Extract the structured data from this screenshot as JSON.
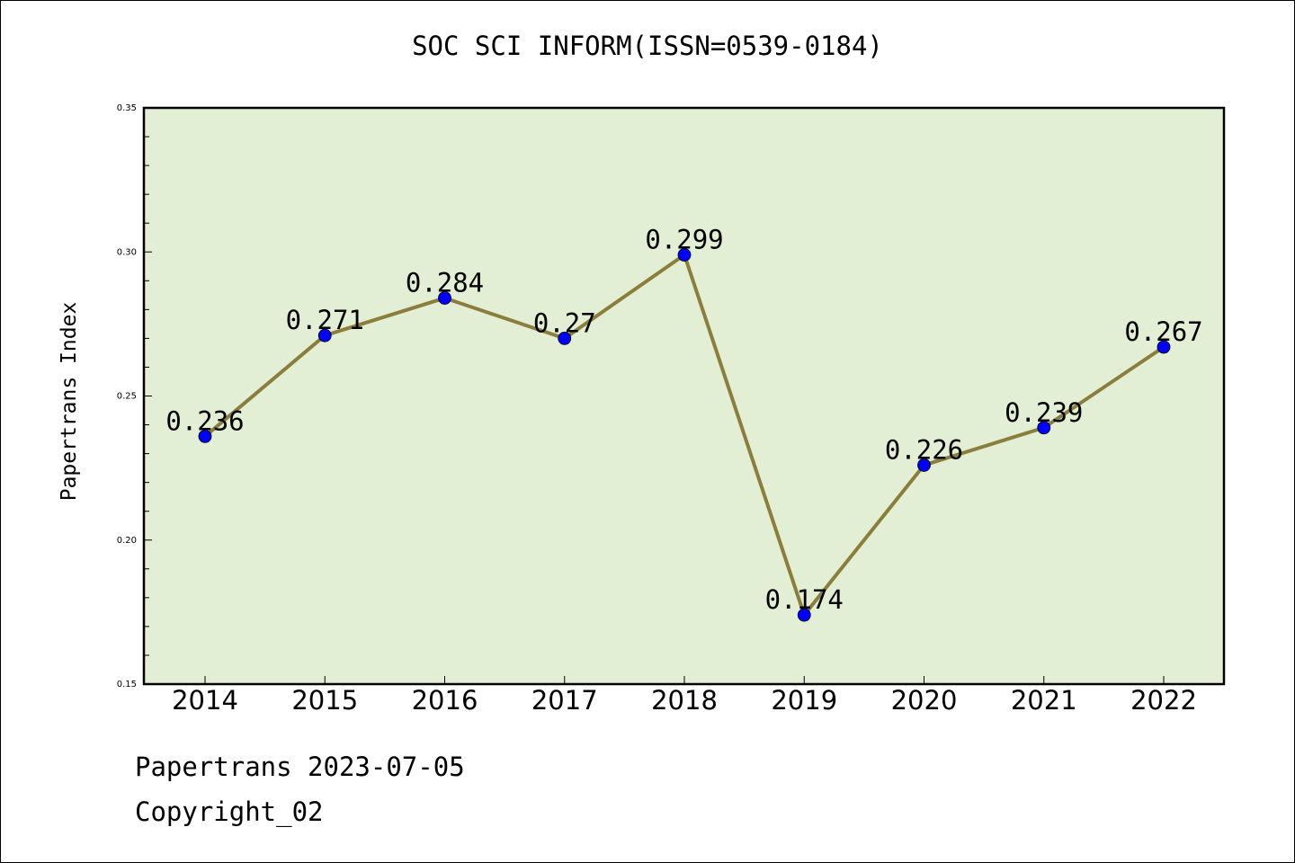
{
  "colors": {
    "background": "#ffffff",
    "plot_background": "#e2efd5",
    "line": "#8b7d3a",
    "marker": "#0000ff"
  },
  "chart_data": {
    "type": "line",
    "title": "SOC SCI INFORM(ISSN=0539-0184)",
    "xlabel": "",
    "ylabel": "Papertrans Index",
    "categories": [
      "2014",
      "2015",
      "2016",
      "2017",
      "2018",
      "2019",
      "2020",
      "2021",
      "2022"
    ],
    "values": [
      0.236,
      0.271,
      0.284,
      0.27,
      0.299,
      0.174,
      0.226,
      0.239,
      0.267
    ],
    "data_labels": [
      "0.236",
      "0.271",
      "0.284",
      "0.27",
      "0.299",
      "0.174",
      "0.226",
      "0.239",
      "0.267"
    ],
    "ylim": [
      0.15,
      0.35
    ],
    "yticks": [
      "0.15",
      "0.20",
      "0.25",
      "0.30",
      "0.35"
    ],
    "grid": false,
    "legend": "none"
  },
  "footer": {
    "source": "Papertrans 2023-07-05",
    "copyright": "Copyright_02"
  }
}
